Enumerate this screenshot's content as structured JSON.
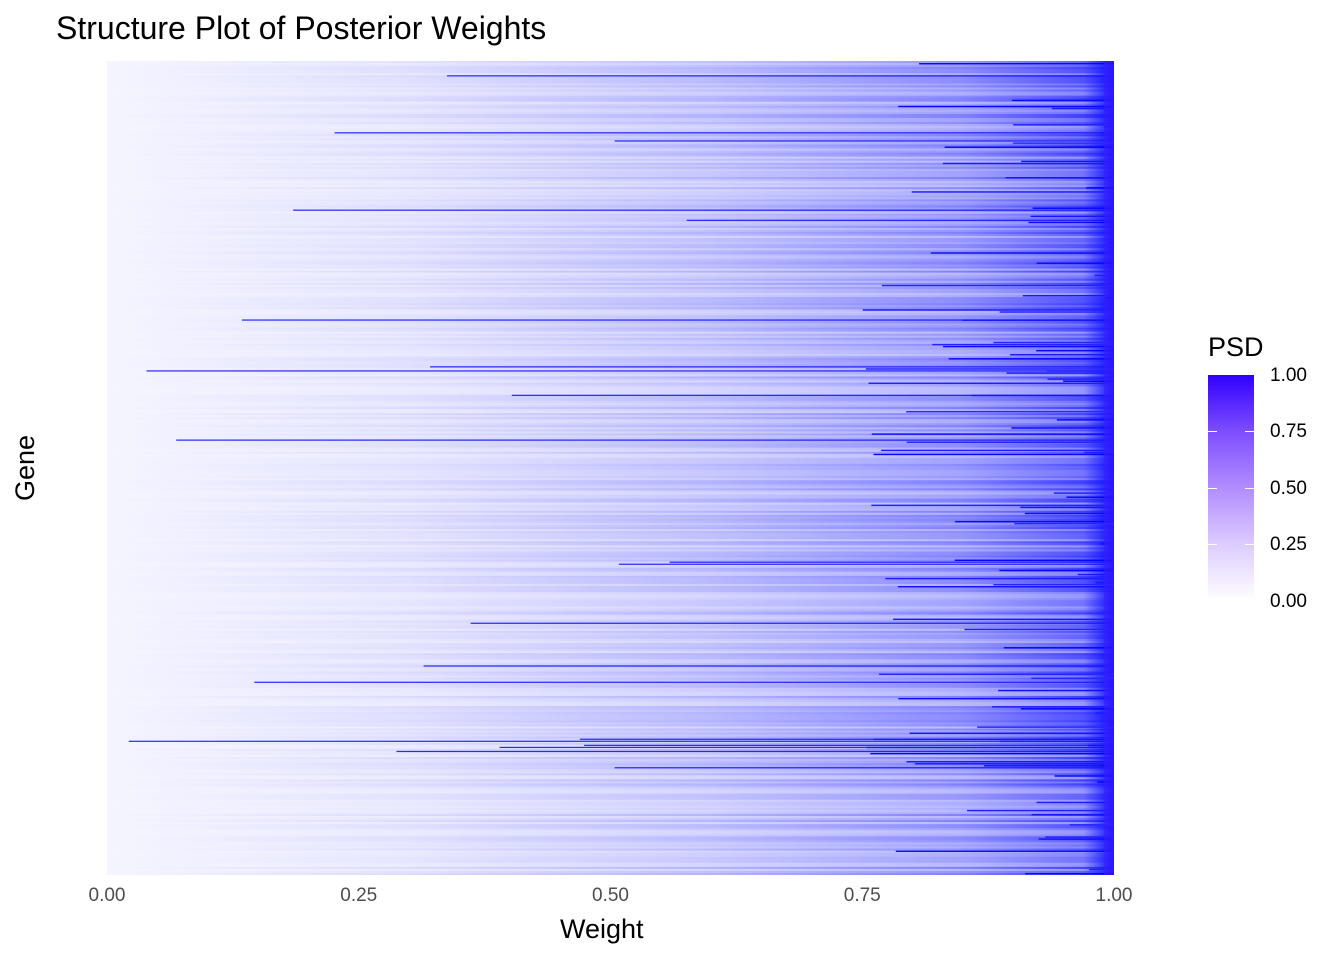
{
  "title": "Structure Plot of Posterior Weights",
  "colors": {
    "low": "#ffffff",
    "high": "#0000ff",
    "background": "#ffffff"
  },
  "chart_data": {
    "type": "heatmap",
    "title": "Structure Plot of Posterior Weights",
    "xlabel": "Weight",
    "ylabel": "Gene",
    "xlim": [
      0,
      1
    ],
    "x_ticks": [
      "0.00",
      "0.25",
      "0.50",
      "0.75",
      "1.00"
    ],
    "y_ticks_shown": false,
    "grid": false,
    "legend": {
      "title": "PSD",
      "placement": "right",
      "range": [
        0,
        1
      ],
      "ticks": [
        "1.00",
        "0.75",
        "0.50",
        "0.25",
        "0.00"
      ]
    },
    "description_values": {
      "n_genes_approx": 400,
      "psd_trend": "PSD increases with weight; near 0 at weight 0 and near 1 at weight 1"
    }
  }
}
